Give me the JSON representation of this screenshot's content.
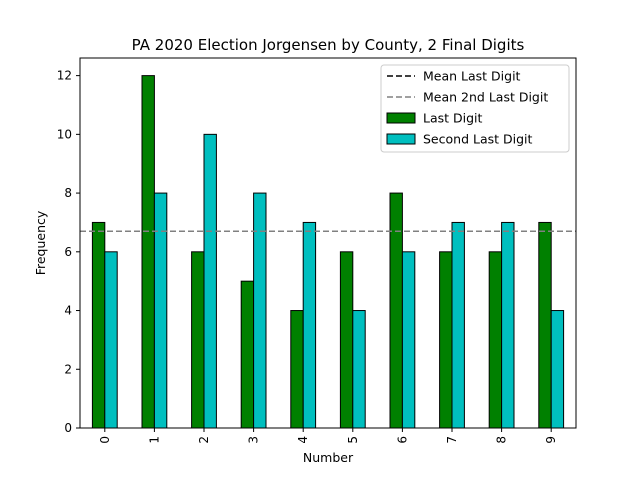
{
  "chart_data": {
    "type": "bar",
    "title": "PA 2020 Election Jorgensen by County, 2 Final Digits",
    "xlabel": "Number",
    "ylabel": "Frequency",
    "categories": [
      "0",
      "1",
      "2",
      "3",
      "4",
      "5",
      "6",
      "7",
      "8",
      "9"
    ],
    "ylim": [
      0,
      12.6
    ],
    "yticks": [
      0,
      2,
      4,
      6,
      8,
      10,
      12
    ],
    "grid": false,
    "legend_position": "top-right",
    "series": [
      {
        "name": "Last Digit",
        "color": "#008000",
        "values": [
          7,
          12,
          6,
          5,
          4,
          6,
          8,
          6,
          6,
          7
        ]
      },
      {
        "name": "Second Last Digit",
        "color": "#00bfbf",
        "values": [
          6,
          8,
          10,
          8,
          7,
          4,
          6,
          7,
          7,
          4
        ]
      }
    ],
    "reference_lines": [
      {
        "name": "Mean Last Digit",
        "value": 6.7,
        "color": "#000000",
        "style": "dashed"
      },
      {
        "name": "Mean 2nd Last Digit",
        "value": 6.7,
        "color": "#808080",
        "style": "dashed"
      }
    ]
  }
}
